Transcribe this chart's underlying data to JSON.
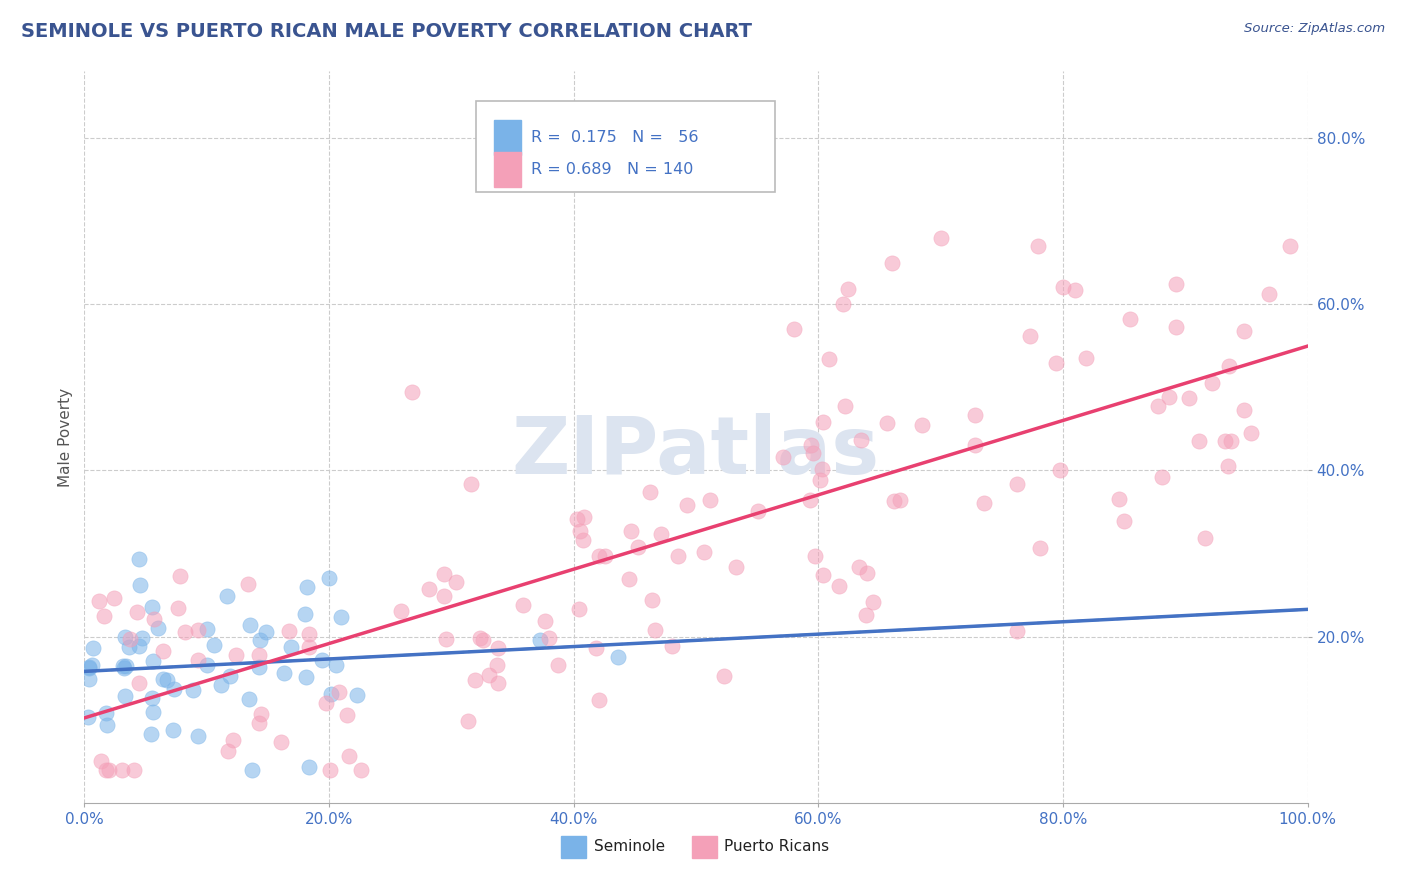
{
  "title": "SEMINOLE VS PUERTO RICAN MALE POVERTY CORRELATION CHART",
  "source_text": "Source: ZipAtlas.com",
  "ylabel": "Male Poverty",
  "xlim": [
    0.0,
    1.0
  ],
  "ylim": [
    0.0,
    0.88
  ],
  "x_tick_labels": [
    "0.0%",
    "20.0%",
    "40.0%",
    "60.0%",
    "80.0%",
    "100.0%"
  ],
  "x_tick_vals": [
    0.0,
    0.2,
    0.4,
    0.6,
    0.8,
    1.0
  ],
  "y_tick_labels": [
    "20.0%",
    "40.0%",
    "60.0%",
    "80.0%"
  ],
  "y_tick_vals": [
    0.2,
    0.4,
    0.6,
    0.8
  ],
  "title_color": "#3a5490",
  "title_fontsize": 14,
  "axis_label_color": "#555555",
  "tick_color": "#4472c4",
  "grid_color": "#cccccc",
  "watermark_text": "ZIPatlas",
  "watermark_color": "#dce4f0",
  "seminole_color": "#7ab3e8",
  "puerto_rican_color": "#f4a0b8",
  "seminole_line_color": "#4472c4",
  "puerto_rican_line_color": "#e84070",
  "legend_color": "#4472c4",
  "background_color": "#ffffff",
  "plot_bg_color": "#ffffff",
  "legend_r1_val": "0.175",
  "legend_n1_val": "56",
  "legend_r2_val": "0.689",
  "legend_n2_val": "140"
}
